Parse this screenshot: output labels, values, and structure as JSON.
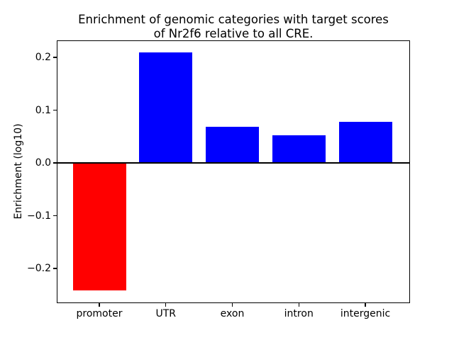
{
  "figure": {
    "title_line1": "Enrichment of genomic categories with target scores",
    "title_line2": "of Nr2f6 relative to all CRE.",
    "ylabel": "Enrichment (log10)"
  },
  "chart_data": {
    "type": "bar",
    "title": "Enrichment of genomic categories with target scores\nof Nr2f6 relative to all CRE.",
    "xlabel": "",
    "ylabel": "Enrichment (log10)",
    "categories": [
      "promoter",
      "UTR",
      "exon",
      "intron",
      "intergenic"
    ],
    "values": [
      -0.242,
      0.21,
      0.069,
      0.053,
      0.078
    ],
    "bar_colors": [
      "#ff0000",
      "#0000ff",
      "#0000ff",
      "#0000ff",
      "#0000ff"
    ],
    "yticks": [
      0.2,
      0.1,
      0.0,
      -0.1,
      -0.2
    ],
    "ytick_labels": [
      "0.2",
      "0.1",
      "0.0",
      "−0.1",
      "−0.2"
    ],
    "ylim": [
      -0.2644,
      0.2309
    ],
    "grid": false,
    "legend": null,
    "zero_line": true,
    "zero_line_color": "#000000",
    "axis_color": "#000000",
    "background": "#ffffff"
  }
}
